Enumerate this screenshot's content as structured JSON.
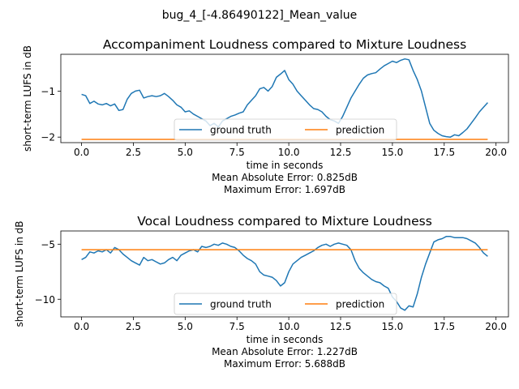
{
  "suptitle": "bug_4_[-4.86490122]_Mean_value",
  "colors": {
    "ground_truth": "#1f77b4",
    "prediction": "#ff7f0e"
  },
  "chart_data": [
    {
      "type": "line",
      "title": "Accompaniment Loudness compared to Mixture Loudness",
      "xlabel": "time in seconds",
      "ylabel": "short-term LUFS in dB",
      "xlim": [
        -1.0,
        20.6
      ],
      "ylim": [
        -2.12,
        -0.2
      ],
      "xticks": [
        0.0,
        2.5,
        5.0,
        7.5,
        10.0,
        12.5,
        15.0,
        17.5,
        20.0
      ],
      "xtick_labels": [
        "0.0",
        "2.5",
        "5.0",
        "7.5",
        "10.0",
        "12.5",
        "15.0",
        "17.5",
        "20.0"
      ],
      "yticks": [
        -2,
        -1
      ],
      "ytick_labels": [
        "−2",
        "−1"
      ],
      "legend": {
        "placement": "lower-center",
        "ncol": 2
      },
      "captions": [
        "Mean Absolute Error: 0.825dB",
        "Maximum Error: 1.697dB"
      ],
      "series": [
        {
          "name": "ground truth",
          "color": "#1f77b4",
          "points": [
            [
              0.0,
              -1.07
            ],
            [
              0.2,
              -1.1
            ],
            [
              0.4,
              -1.27
            ],
            [
              0.6,
              -1.22
            ],
            [
              0.8,
              -1.28
            ],
            [
              1.0,
              -1.3
            ],
            [
              1.2,
              -1.27
            ],
            [
              1.4,
              -1.32
            ],
            [
              1.6,
              -1.28
            ],
            [
              1.8,
              -1.42
            ],
            [
              2.0,
              -1.4
            ],
            [
              2.2,
              -1.18
            ],
            [
              2.4,
              -1.05
            ],
            [
              2.6,
              -1.0
            ],
            [
              2.8,
              -0.98
            ],
            [
              3.0,
              -1.15
            ],
            [
              3.2,
              -1.12
            ],
            [
              3.4,
              -1.1
            ],
            [
              3.6,
              -1.12
            ],
            [
              3.8,
              -1.1
            ],
            [
              4.0,
              -1.05
            ],
            [
              4.2,
              -1.12
            ],
            [
              4.4,
              -1.2
            ],
            [
              4.6,
              -1.3
            ],
            [
              4.8,
              -1.35
            ],
            [
              5.0,
              -1.45
            ],
            [
              5.2,
              -1.43
            ],
            [
              5.4,
              -1.5
            ],
            [
              5.6,
              -1.55
            ],
            [
              5.8,
              -1.6
            ],
            [
              6.0,
              -1.65
            ],
            [
              6.2,
              -1.75
            ],
            [
              6.4,
              -1.7
            ],
            [
              6.6,
              -1.78
            ],
            [
              6.8,
              -1.65
            ],
            [
              7.0,
              -1.6
            ],
            [
              7.2,
              -1.55
            ],
            [
              7.4,
              -1.52
            ],
            [
              7.6,
              -1.48
            ],
            [
              7.8,
              -1.45
            ],
            [
              8.0,
              -1.3
            ],
            [
              8.2,
              -1.2
            ],
            [
              8.4,
              -1.1
            ],
            [
              8.6,
              -0.95
            ],
            [
              8.8,
              -0.92
            ],
            [
              9.0,
              -1.0
            ],
            [
              9.2,
              -0.9
            ],
            [
              9.4,
              -0.7
            ],
            [
              9.6,
              -0.63
            ],
            [
              9.8,
              -0.55
            ],
            [
              10.0,
              -0.75
            ],
            [
              10.2,
              -0.85
            ],
            [
              10.4,
              -1.0
            ],
            [
              10.6,
              -1.1
            ],
            [
              10.8,
              -1.2
            ],
            [
              11.0,
              -1.3
            ],
            [
              11.2,
              -1.38
            ],
            [
              11.4,
              -1.4
            ],
            [
              11.6,
              -1.45
            ],
            [
              11.8,
              -1.55
            ],
            [
              12.0,
              -1.62
            ],
            [
              12.2,
              -1.65
            ],
            [
              12.4,
              -1.7
            ],
            [
              12.6,
              -1.55
            ],
            [
              12.8,
              -1.35
            ],
            [
              13.0,
              -1.15
            ],
            [
              13.2,
              -1.0
            ],
            [
              13.4,
              -0.85
            ],
            [
              13.6,
              -0.72
            ],
            [
              13.8,
              -0.65
            ],
            [
              14.0,
              -0.62
            ],
            [
              14.2,
              -0.6
            ],
            [
              14.4,
              -0.52
            ],
            [
              14.6,
              -0.45
            ],
            [
              14.8,
              -0.4
            ],
            [
              15.0,
              -0.35
            ],
            [
              15.2,
              -0.38
            ],
            [
              15.4,
              -0.33
            ],
            [
              15.6,
              -0.3
            ],
            [
              15.8,
              -0.32
            ],
            [
              16.0,
              -0.55
            ],
            [
              16.2,
              -0.75
            ],
            [
              16.4,
              -1.0
            ],
            [
              16.6,
              -1.35
            ],
            [
              16.8,
              -1.7
            ],
            [
              17.0,
              -1.85
            ],
            [
              17.2,
              -1.92
            ],
            [
              17.4,
              -1.97
            ],
            [
              17.6,
              -1.99
            ],
            [
              17.8,
              -2.0
            ],
            [
              18.0,
              -1.95
            ],
            [
              18.2,
              -1.97
            ],
            [
              18.4,
              -1.9
            ],
            [
              18.6,
              -1.82
            ],
            [
              18.8,
              -1.7
            ],
            [
              19.0,
              -1.58
            ],
            [
              19.2,
              -1.45
            ],
            [
              19.4,
              -1.35
            ],
            [
              19.6,
              -1.25
            ]
          ]
        },
        {
          "name": "prediction",
          "color": "#ff7f0e",
          "points": [
            [
              0.0,
              -2.05
            ],
            [
              19.6,
              -2.05
            ]
          ]
        }
      ]
    },
    {
      "type": "line",
      "title": "Vocal Loudness compared to Mixture Loudness",
      "xlabel": "time in seconds",
      "ylabel": "short-term LUFS in dB",
      "xlim": [
        -1.0,
        20.6
      ],
      "ylim": [
        -11.6,
        -3.8
      ],
      "xticks": [
        0.0,
        2.5,
        5.0,
        7.5,
        10.0,
        12.5,
        15.0,
        17.5,
        20.0
      ],
      "xtick_labels": [
        "0.0",
        "2.5",
        "5.0",
        "7.5",
        "10.0",
        "12.5",
        "15.0",
        "17.5",
        "20.0"
      ],
      "yticks": [
        -10,
        -5
      ],
      "ytick_labels": [
        "−10",
        "−5"
      ],
      "legend": {
        "placement": "lower-center",
        "ncol": 2
      },
      "captions": [
        "Mean Absolute Error: 1.227dB",
        "Maximum Error: 5.688dB"
      ],
      "series": [
        {
          "name": "ground truth",
          "color": "#1f77b4",
          "points": [
            [
              0.0,
              -6.4
            ],
            [
              0.2,
              -6.2
            ],
            [
              0.4,
              -5.7
            ],
            [
              0.6,
              -5.8
            ],
            [
              0.8,
              -5.6
            ],
            [
              1.0,
              -5.7
            ],
            [
              1.2,
              -5.5
            ],
            [
              1.4,
              -5.8
            ],
            [
              1.6,
              -5.3
            ],
            [
              1.8,
              -5.5
            ],
            [
              2.0,
              -5.9
            ],
            [
              2.2,
              -6.2
            ],
            [
              2.4,
              -6.5
            ],
            [
              2.6,
              -6.7
            ],
            [
              2.8,
              -6.9
            ],
            [
              3.0,
              -6.2
            ],
            [
              3.2,
              -6.5
            ],
            [
              3.4,
              -6.4
            ],
            [
              3.6,
              -6.6
            ],
            [
              3.8,
              -6.8
            ],
            [
              4.0,
              -6.7
            ],
            [
              4.2,
              -6.4
            ],
            [
              4.4,
              -6.2
            ],
            [
              4.6,
              -6.5
            ],
            [
              4.8,
              -6.0
            ],
            [
              5.0,
              -5.8
            ],
            [
              5.2,
              -5.6
            ],
            [
              5.4,
              -5.5
            ],
            [
              5.6,
              -5.7
            ],
            [
              5.8,
              -5.2
            ],
            [
              6.0,
              -5.3
            ],
            [
              6.2,
              -5.2
            ],
            [
              6.4,
              -5.0
            ],
            [
              6.6,
              -5.1
            ],
            [
              6.8,
              -4.9
            ],
            [
              7.0,
              -5.0
            ],
            [
              7.2,
              -5.2
            ],
            [
              7.4,
              -5.3
            ],
            [
              7.6,
              -5.6
            ],
            [
              7.8,
              -6.0
            ],
            [
              8.0,
              -6.3
            ],
            [
              8.2,
              -6.5
            ],
            [
              8.4,
              -6.8
            ],
            [
              8.6,
              -7.5
            ],
            [
              8.8,
              -7.8
            ],
            [
              9.0,
              -7.9
            ],
            [
              9.2,
              -8.0
            ],
            [
              9.4,
              -8.3
            ],
            [
              9.6,
              -8.8
            ],
            [
              9.8,
              -8.5
            ],
            [
              10.0,
              -7.5
            ],
            [
              10.2,
              -6.8
            ],
            [
              10.4,
              -6.5
            ],
            [
              10.6,
              -6.2
            ],
            [
              10.8,
              -6.0
            ],
            [
              11.0,
              -5.8
            ],
            [
              11.2,
              -5.6
            ],
            [
              11.4,
              -5.3
            ],
            [
              11.6,
              -5.1
            ],
            [
              11.8,
              -5.0
            ],
            [
              12.0,
              -5.2
            ],
            [
              12.2,
              -5.0
            ],
            [
              12.4,
              -4.9
            ],
            [
              12.6,
              -5.0
            ],
            [
              12.8,
              -5.1
            ],
            [
              13.0,
              -5.5
            ],
            [
              13.2,
              -6.5
            ],
            [
              13.4,
              -7.2
            ],
            [
              13.6,
              -7.6
            ],
            [
              13.8,
              -7.9
            ],
            [
              14.0,
              -8.2
            ],
            [
              14.2,
              -8.4
            ],
            [
              14.4,
              -8.5
            ],
            [
              14.6,
              -8.8
            ],
            [
              14.8,
              -9.0
            ],
            [
              15.0,
              -9.8
            ],
            [
              15.2,
              -10.2
            ],
            [
              15.4,
              -10.8
            ],
            [
              15.6,
              -11.0
            ],
            [
              15.8,
              -10.6
            ],
            [
              16.0,
              -10.7
            ],
            [
              16.2,
              -9.5
            ],
            [
              16.4,
              -8.0
            ],
            [
              16.6,
              -6.8
            ],
            [
              16.8,
              -5.8
            ],
            [
              17.0,
              -4.8
            ],
            [
              17.2,
              -4.6
            ],
            [
              17.4,
              -4.5
            ],
            [
              17.6,
              -4.3
            ],
            [
              17.8,
              -4.3
            ],
            [
              18.0,
              -4.4
            ],
            [
              18.2,
              -4.4
            ],
            [
              18.4,
              -4.4
            ],
            [
              18.6,
              -4.5
            ],
            [
              18.8,
              -4.7
            ],
            [
              19.0,
              -4.9
            ],
            [
              19.2,
              -5.3
            ],
            [
              19.4,
              -5.8
            ],
            [
              19.6,
              -6.1
            ]
          ]
        },
        {
          "name": "prediction",
          "color": "#ff7f0e",
          "points": [
            [
              0.0,
              -5.5
            ],
            [
              19.6,
              -5.5
            ]
          ]
        }
      ]
    }
  ]
}
